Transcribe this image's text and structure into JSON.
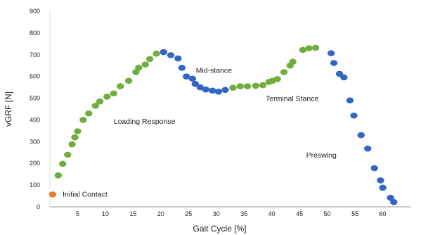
{
  "chart_data": {
    "type": "scatter",
    "xlabel": "Gait Cycle [%]",
    "ylabel": "vGRF [N]",
    "xlim": [
      0,
      65
    ],
    "ylim": [
      0,
      900
    ],
    "x_ticks": [
      5,
      10,
      15,
      20,
      25,
      30,
      35,
      40,
      45,
      50,
      55,
      60
    ],
    "y_ticks": [
      0,
      100,
      200,
      300,
      400,
      500,
      600,
      700,
      800,
      900
    ],
    "grid": false,
    "colors": {
      "orange": "#E8792A",
      "green": "#6FAE3E",
      "blue": "#3366C4"
    },
    "series": [
      {
        "color": "orange",
        "points": [
          [
            0.5,
            57
          ]
        ]
      },
      {
        "color": "green",
        "points": [
          [
            1.5,
            145
          ],
          [
            2.3,
            198
          ],
          [
            3.2,
            240
          ],
          [
            4.0,
            288
          ],
          [
            4.5,
            320
          ],
          [
            5.0,
            348
          ],
          [
            6.0,
            400
          ],
          [
            7.0,
            430
          ],
          [
            8.2,
            465
          ],
          [
            9.0,
            485
          ],
          [
            10.3,
            507
          ],
          [
            11.5,
            522
          ],
          [
            12.7,
            555
          ],
          [
            14.2,
            580
          ],
          [
            15.5,
            620
          ],
          [
            16.0,
            640
          ],
          [
            17.2,
            655
          ],
          [
            18.0,
            680
          ],
          [
            19.2,
            705
          ],
          [
            33.0,
            548
          ],
          [
            34.3,
            555
          ],
          [
            35.6,
            555
          ],
          [
            37.1,
            557
          ],
          [
            38.4,
            560
          ],
          [
            39.5,
            575
          ],
          [
            40.1,
            580
          ],
          [
            41.0,
            588
          ],
          [
            42.2,
            620
          ],
          [
            43.3,
            650
          ],
          [
            43.8,
            668
          ],
          [
            45.6,
            722
          ],
          [
            46.7,
            730
          ],
          [
            47.9,
            732
          ]
        ]
      },
      {
        "color": "blue",
        "points": [
          [
            20.5,
            712
          ],
          [
            21.8,
            698
          ],
          [
            23.1,
            683
          ],
          [
            23.8,
            640
          ],
          [
            24.6,
            600
          ],
          [
            25.7,
            590
          ],
          [
            26.2,
            566
          ],
          [
            27.1,
            550
          ],
          [
            28.1,
            540
          ],
          [
            29.3,
            535
          ],
          [
            30.4,
            530
          ],
          [
            31.6,
            538
          ],
          [
            50.7,
            707
          ],
          [
            51.2,
            662
          ],
          [
            52.2,
            612
          ],
          [
            53.0,
            596
          ],
          [
            54.1,
            490
          ],
          [
            54.8,
            420
          ],
          [
            56.1,
            330
          ],
          [
            57.3,
            268
          ],
          [
            58.5,
            178
          ],
          [
            59.6,
            122
          ],
          [
            60.0,
            88
          ],
          [
            61.4,
            42
          ],
          [
            62.0,
            22
          ]
        ]
      }
    ],
    "annotations": [
      {
        "text": "Initial Contact",
        "x": 2.3,
        "y": 60
      },
      {
        "text": "Loading Response",
        "x": 11.5,
        "y": 395
      },
      {
        "text": "Mid-stance",
        "x": 26.3,
        "y": 630
      },
      {
        "text": "Terminal Stance",
        "x": 38.9,
        "y": 500
      },
      {
        "text": "Preswing",
        "x": 46.2,
        "y": 240
      }
    ]
  }
}
